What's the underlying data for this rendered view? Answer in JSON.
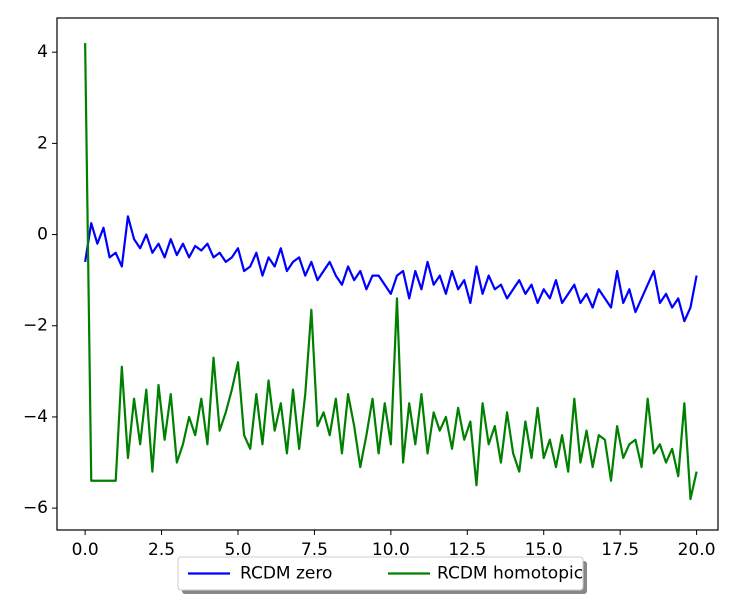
{
  "chart_data": {
    "type": "line",
    "x": [
      0,
      0.2,
      0.4,
      0.6,
      0.8,
      1.0,
      1.2,
      1.4,
      1.6,
      1.8,
      2.0,
      2.2,
      2.4,
      2.6,
      2.8,
      3.0,
      3.2,
      3.4,
      3.6,
      3.8,
      4.0,
      4.2,
      4.4,
      4.6,
      4.8,
      5.0,
      5.2,
      5.4,
      5.6,
      5.8,
      6.0,
      6.2,
      6.4,
      6.6,
      6.8,
      7.0,
      7.2,
      7.4,
      7.6,
      7.8,
      8.0,
      8.2,
      8.4,
      8.6,
      8.8,
      9.0,
      9.2,
      9.4,
      9.6,
      9.8,
      10.0,
      10.2,
      10.4,
      10.6,
      10.8,
      11.0,
      11.2,
      11.4,
      11.6,
      11.8,
      12.0,
      12.2,
      12.4,
      12.6,
      12.8,
      13.0,
      13.2,
      13.4,
      13.6,
      13.8,
      14.0,
      14.2,
      14.4,
      14.6,
      14.8,
      15.0,
      15.2,
      15.4,
      15.6,
      15.8,
      16.0,
      16.2,
      16.4,
      16.6,
      16.8,
      17.0,
      17.2,
      17.4,
      17.6,
      17.8,
      18.0,
      18.2,
      18.4,
      18.6,
      18.8,
      19.0,
      19.2,
      19.4,
      19.6,
      19.8,
      20.0
    ],
    "series": [
      {
        "name": "RCDM zero",
        "color": "#0000ff",
        "values": [
          -0.6,
          0.25,
          -0.2,
          0.15,
          -0.5,
          -0.4,
          -0.7,
          0.4,
          -0.1,
          -0.3,
          0.0,
          -0.4,
          -0.2,
          -0.5,
          -0.1,
          -0.45,
          -0.2,
          -0.5,
          -0.25,
          -0.35,
          -0.2,
          -0.5,
          -0.4,
          -0.6,
          -0.5,
          -0.3,
          -0.8,
          -0.7,
          -0.4,
          -0.9,
          -0.5,
          -0.7,
          -0.3,
          -0.8,
          -0.6,
          -0.5,
          -0.9,
          -0.6,
          -1.0,
          -0.8,
          -0.6,
          -0.9,
          -1.1,
          -0.7,
          -1.0,
          -0.8,
          -1.2,
          -0.9,
          -0.9,
          -1.1,
          -1.3,
          -0.9,
          -0.8,
          -1.4,
          -0.8,
          -1.2,
          -0.6,
          -1.1,
          -0.9,
          -1.3,
          -0.8,
          -1.2,
          -1.0,
          -1.5,
          -0.7,
          -1.3,
          -0.9,
          -1.2,
          -1.1,
          -1.4,
          -1.2,
          -1.0,
          -1.3,
          -1.1,
          -1.5,
          -1.2,
          -1.4,
          -1.0,
          -1.5,
          -1.3,
          -1.1,
          -1.5,
          -1.3,
          -1.6,
          -1.2,
          -1.4,
          -1.6,
          -0.8,
          -1.5,
          -1.2,
          -1.7,
          -1.4,
          -1.1,
          -0.8,
          -1.5,
          -1.3,
          -1.6,
          -1.4,
          -1.9,
          -1.6,
          -0.9
        ]
      },
      {
        "name": "RCDM homotopic",
        "color": "#008000",
        "values": [
          4.2,
          -5.4,
          -5.4,
          -5.4,
          -5.4,
          -5.4,
          -2.9,
          -4.9,
          -3.6,
          -4.6,
          -3.4,
          -5.2,
          -3.3,
          -4.5,
          -3.5,
          -5.0,
          -4.6,
          -4.0,
          -4.4,
          -3.6,
          -4.6,
          -2.7,
          -4.3,
          -3.9,
          -3.4,
          -2.8,
          -4.4,
          -4.7,
          -3.5,
          -4.6,
          -3.2,
          -4.3,
          -3.7,
          -4.8,
          -3.4,
          -4.7,
          -3.5,
          -1.65,
          -4.2,
          -3.9,
          -4.4,
          -3.6,
          -4.8,
          -3.5,
          -4.2,
          -5.1,
          -4.4,
          -3.6,
          -4.8,
          -3.7,
          -4.6,
          -1.4,
          -5.0,
          -3.7,
          -4.6,
          -3.5,
          -4.8,
          -3.9,
          -4.3,
          -4.0,
          -4.7,
          -3.8,
          -4.5,
          -4.1,
          -5.5,
          -3.7,
          -4.6,
          -4.2,
          -5.0,
          -3.9,
          -4.8,
          -5.2,
          -4.1,
          -4.9,
          -3.8,
          -4.9,
          -4.5,
          -5.1,
          -4.4,
          -5.2,
          -3.6,
          -5.0,
          -4.3,
          -5.1,
          -4.4,
          -4.5,
          -5.4,
          -4.2,
          -4.9,
          -4.6,
          -4.5,
          -5.1,
          -3.6,
          -4.8,
          -4.6,
          -5.0,
          -4.7,
          -5.3,
          -3.7,
          -5.8,
          -5.2
        ]
      }
    ],
    "xlim": [
      -0.92,
      20.7
    ],
    "ylim": [
      -6.48,
      4.75
    ],
    "xticks": [
      {
        "value": 0,
        "label": "0.0"
      },
      2.5,
      {
        "value": 5,
        "label": "5.0"
      },
      7.5,
      {
        "value": 10,
        "label": "10.0"
      },
      12.5,
      {
        "value": 15,
        "label": "15.0"
      },
      17.5,
      {
        "value": 20,
        "label": "20.0"
      }
    ],
    "yticks": [
      {
        "value": -6,
        "label": "−6"
      },
      {
        "value": -4,
        "label": "−4"
      },
      {
        "value": -2,
        "label": "−2"
      },
      0,
      2,
      4
    ],
    "legend": "lower center"
  }
}
